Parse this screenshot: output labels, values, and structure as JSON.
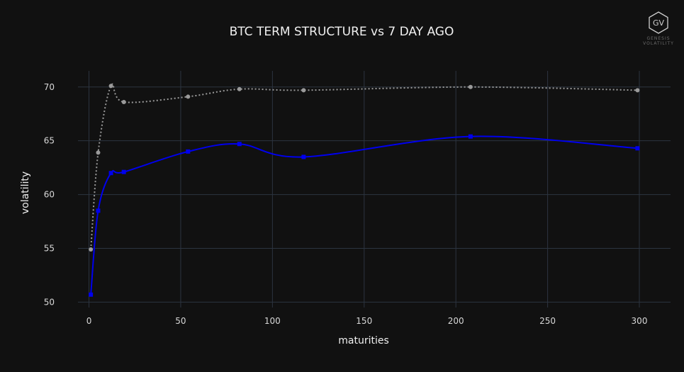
{
  "logo": {
    "mark": "GV",
    "line1": "GENESIS",
    "line2": "VOLATILITY"
  },
  "chart_data": {
    "type": "line",
    "title": "BTC TERM STRUCTURE vs 7 DAY AGO",
    "xlabel": "maturities",
    "ylabel": "volatility",
    "xlim": [
      -6,
      317
    ],
    "ylim": [
      49.5,
      71.5
    ],
    "xticks": [
      0,
      50,
      100,
      150,
      200,
      250,
      300
    ],
    "yticks": [
      50,
      55,
      60,
      65,
      70
    ],
    "grid": true,
    "series": [
      {
        "style": "solid",
        "color": "#0000ee",
        "x": [
          1,
          5,
          12,
          19,
          54,
          82,
          117,
          208,
          299
        ],
        "y": [
          50.7,
          58.5,
          62.0,
          62.1,
          64.0,
          64.7,
          63.5,
          65.4,
          64.3
        ]
      },
      {
        "style": "dotted",
        "color": "#9a9a9a",
        "x": [
          1,
          5,
          12,
          19,
          54,
          82,
          117,
          208,
          299
        ],
        "y": [
          54.9,
          63.9,
          70.1,
          68.6,
          69.1,
          69.8,
          69.7,
          70.0,
          69.7
        ]
      }
    ]
  }
}
